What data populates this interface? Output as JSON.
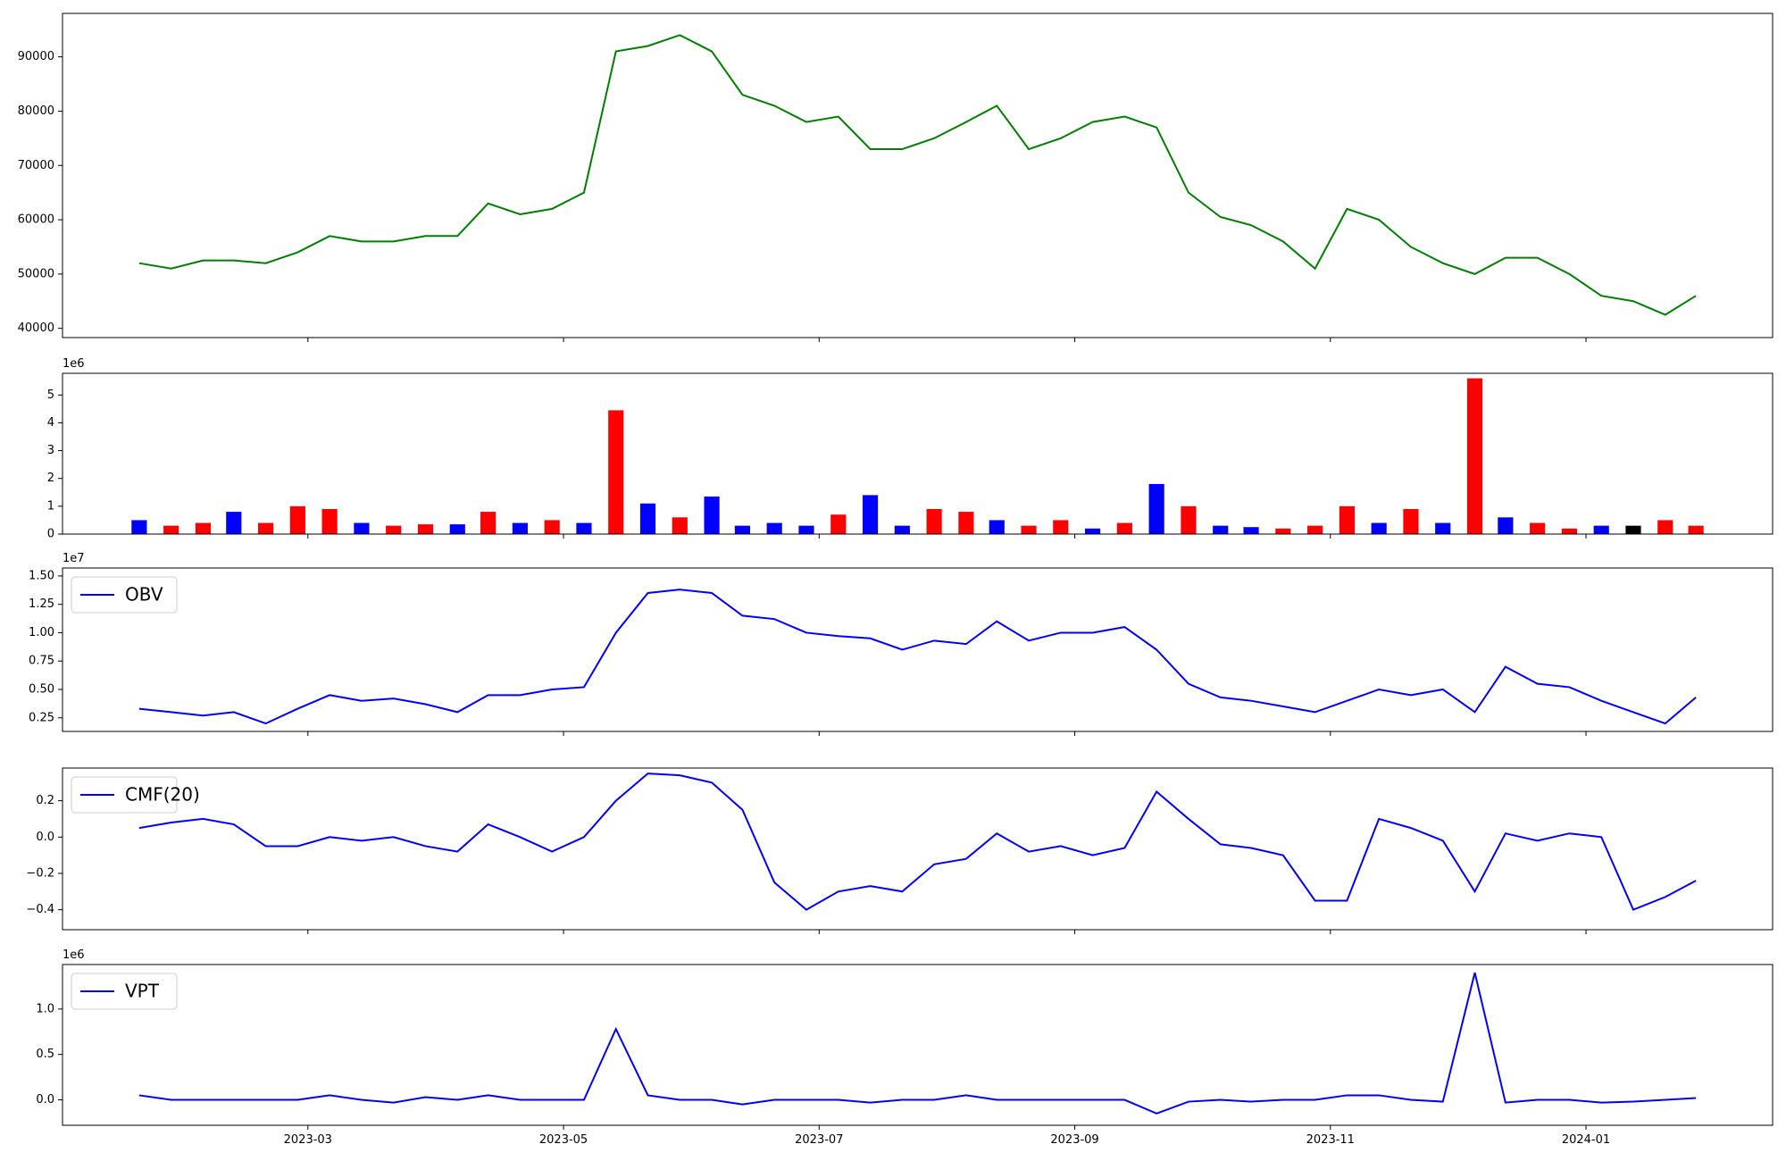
{
  "chart_data": [
    {
      "type": "line",
      "series": [
        {
          "color": "#008000",
          "values": [
            52000,
            51000,
            52500,
            52500,
            52000,
            54000,
            57000,
            56000,
            56000,
            57000,
            57000,
            63000,
            61000,
            62000,
            65000,
            91000,
            92000,
            94000,
            91000,
            83000,
            81000,
            78000,
            79000,
            73000,
            73000,
            75000,
            78000,
            81000,
            73000,
            75000,
            78000,
            79000,
            77000,
            65000,
            60500,
            59000,
            56000,
            51000,
            62000,
            60000,
            55000,
            52000,
            50000,
            53000,
            53000,
            50000,
            46000,
            45000,
            42500,
            46000
          ]
        }
      ],
      "ylim": [
        38300,
        98000
      ],
      "yticks": [
        40000,
        50000,
        60000,
        70000,
        80000,
        90000
      ]
    },
    {
      "type": "bar",
      "y_offset_label": "1e6",
      "values": [
        0.5,
        0.3,
        0.4,
        0.8,
        0.4,
        1.0,
        0.9,
        0.4,
        0.3,
        0.35,
        0.35,
        0.8,
        0.4,
        0.5,
        0.4,
        4.45,
        1.1,
        0.6,
        1.35,
        0.3,
        0.4,
        0.3,
        0.7,
        1.4,
        0.3,
        0.9,
        0.8,
        0.5,
        0.3,
        0.5,
        0.2,
        0.4,
        1.8,
        1.0,
        0.3,
        0.25,
        0.2,
        0.3,
        1.0,
        0.4,
        0.9,
        0.4,
        5.6,
        0.6,
        0.4,
        0.2,
        0.3,
        0.3,
        0.5,
        0.3
      ],
      "bar_colors": [
        "#0000ff",
        "#ff0000",
        "#ff0000",
        "#0000ff",
        "#ff0000",
        "#ff0000",
        "#ff0000",
        "#0000ff",
        "#ff0000",
        "#ff0000",
        "#0000ff",
        "#ff0000",
        "#0000ff",
        "#ff0000",
        "#0000ff",
        "#ff0000",
        "#0000ff",
        "#ff0000",
        "#0000ff",
        "#0000ff",
        "#0000ff",
        "#0000ff",
        "#ff0000",
        "#0000ff",
        "#0000ff",
        "#ff0000",
        "#ff0000",
        "#0000ff",
        "#ff0000",
        "#ff0000",
        "#0000ff",
        "#ff0000",
        "#0000ff",
        "#ff0000",
        "#0000ff",
        "#0000ff",
        "#ff0000",
        "#ff0000",
        "#ff0000",
        "#0000ff",
        "#ff0000",
        "#0000ff",
        "#ff0000",
        "#0000ff",
        "#ff0000",
        "#ff0000",
        "#0000ff",
        "#000000",
        "#ff0000",
        "#ff0000"
      ],
      "ylim": [
        0,
        5.78
      ],
      "yticks": [
        0,
        1,
        2,
        3,
        4,
        5
      ]
    },
    {
      "type": "line",
      "y_offset_label": "1e7",
      "legend": "upper left",
      "series": [
        {
          "name": "OBV",
          "color": "#0000ff",
          "values": [
            0.33,
            0.3,
            0.27,
            0.3,
            0.2,
            0.33,
            0.45,
            0.4,
            0.42,
            0.37,
            0.3,
            0.45,
            0.45,
            0.5,
            0.52,
            1.0,
            1.35,
            1.38,
            1.35,
            1.15,
            1.12,
            1.0,
            0.97,
            0.95,
            0.85,
            0.93,
            0.9,
            1.1,
            0.93,
            1.0,
            1.0,
            1.05,
            0.85,
            0.55,
            0.43,
            0.4,
            0.35,
            0.3,
            0.4,
            0.5,
            0.45,
            0.5,
            0.3,
            0.7,
            0.55,
            0.52,
            0.4,
            0.3,
            0.2,
            0.43
          ]
        }
      ],
      "ylim": [
        0.13,
        1.57
      ],
      "yticks": [
        0.25,
        {
          "value": 0.5,
          "label": "0.50"
        },
        0.75,
        {
          "value": 1.0,
          "label": "1.00"
        },
        1.25,
        {
          "value": 1.5,
          "label": "1.50"
        }
      ]
    },
    {
      "type": "line",
      "legend": "upper left",
      "series": [
        {
          "name": "CMF(20)",
          "color": "#0000ff",
          "values": [
            0.05,
            0.08,
            0.1,
            0.07,
            -0.05,
            -0.05,
            0.0,
            -0.02,
            0.0,
            -0.05,
            -0.08,
            0.07,
            0.0,
            -0.08,
            0.0,
            0.2,
            0.35,
            0.34,
            0.3,
            0.15,
            -0.25,
            -0.4,
            -0.3,
            -0.27,
            -0.3,
            -0.15,
            -0.12,
            0.02,
            -0.08,
            -0.05,
            -0.1,
            -0.06,
            0.25,
            0.1,
            -0.04,
            -0.06,
            -0.1,
            -0.35,
            -0.35,
            0.1,
            0.05,
            -0.02,
            -0.3,
            0.02,
            -0.02,
            0.02,
            0.0,
            -0.4,
            -0.33,
            -0.24
          ]
        }
      ],
      "ylim": [
        -0.51,
        0.38
      ],
      "yticks": [
        {
          "value": -0.4,
          "label": "−0.4"
        },
        {
          "value": -0.2,
          "label": "−0.2"
        },
        {
          "value": 0.0,
          "label": "0.0"
        },
        0.2
      ]
    },
    {
      "type": "line",
      "y_offset_label": "1e6",
      "legend": "upper left",
      "series": [
        {
          "name": "VPT",
          "color": "#0000ff",
          "values": [
            0.05,
            0.0,
            0.0,
            0.0,
            0.0,
            0.0,
            0.05,
            0.0,
            -0.03,
            0.03,
            0.0,
            0.05,
            0.0,
            0.0,
            0.0,
            0.78,
            0.05,
            0.0,
            0.0,
            -0.05,
            0.0,
            0.0,
            0.0,
            -0.03,
            0.0,
            0.0,
            0.05,
            0.0,
            0.0,
            0.0,
            0.0,
            0.0,
            -0.15,
            -0.02,
            0.0,
            -0.02,
            0.0,
            0.0,
            0.05,
            0.05,
            0.0,
            -0.02,
            1.4,
            -0.03,
            0.0,
            0.0,
            -0.03,
            -0.02,
            0.0,
            0.02
          ]
        }
      ],
      "ylim": [
        -0.28,
        1.49
      ],
      "yticks": [
        {
          "value": 0.0,
          "label": "0.0"
        },
        0.5,
        {
          "value": 1.0,
          "label": "1.0"
        }
      ],
      "x": [
        1.68,
        1.93,
        2.18,
        2.42,
        2.67,
        2.92,
        3.17,
        3.42,
        3.67,
        3.92,
        4.17,
        4.41,
        4.66,
        4.91,
        5.16,
        5.41,
        5.66,
        5.91,
        6.16,
        6.4,
        6.65,
        6.9,
        7.15,
        7.4,
        7.65,
        7.9,
        8.15,
        8.39,
        8.64,
        8.89,
        9.14,
        9.39,
        9.64,
        9.89,
        10.14,
        10.38,
        10.63,
        10.88,
        11.13,
        11.38,
        11.63,
        11.88,
        12.13,
        12.37,
        12.62,
        12.87,
        13.12,
        13.37,
        13.62,
        13.86
      ],
      "xlim": [
        1.08,
        14.46
      ],
      "xticks": [
        {
          "value": 3,
          "label": "2023-03"
        },
        {
          "value": 5,
          "label": "2023-05"
        },
        {
          "value": 7,
          "label": "2023-07"
        },
        {
          "value": 9,
          "label": "2023-09"
        },
        {
          "value": 11,
          "label": "2023-11"
        },
        {
          "value": 13,
          "label": "2024-01"
        }
      ]
    }
  ]
}
